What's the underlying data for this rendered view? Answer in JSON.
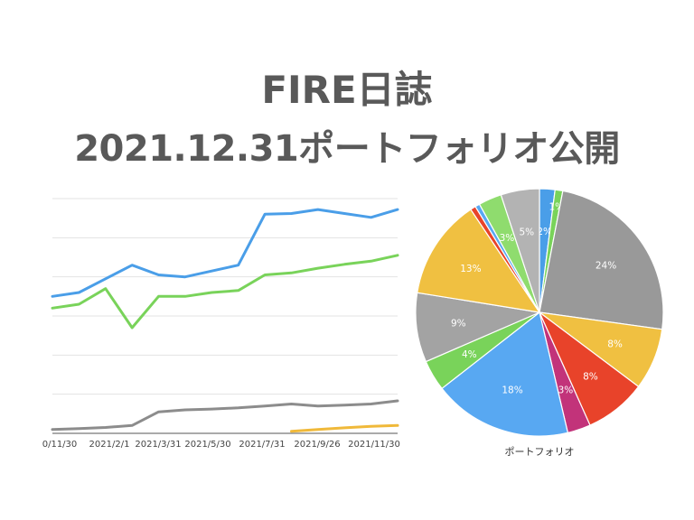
{
  "header": {
    "title_line1": "FIRE日誌",
    "title_line2": "2021.12.31ポートフォリオ公開"
  },
  "chart_data": [
    {
      "type": "line",
      "x_ticks": [
        "0/11/30",
        "2021/2/1",
        "2021/3/31",
        "2021/5/30",
        "2021/7/31",
        "2021/9/26",
        "2021/11/30"
      ],
      "ylim": [
        0,
        6
      ],
      "grid": true,
      "series": [
        {
          "color": "#4a9ee8",
          "values": [
            3.5,
            3.6,
            3.95,
            4.3,
            4.05,
            4.0,
            4.15,
            4.3,
            5.6,
            5.62,
            5.72,
            5.62,
            5.52,
            5.72
          ]
        },
        {
          "color": "#79d35a",
          "values": [
            3.2,
            3.3,
            3.7,
            2.7,
            3.5,
            3.5,
            3.6,
            3.65,
            4.05,
            4.1,
            4.22,
            4.32,
            4.4,
            4.55
          ]
        },
        {
          "color": "#8c8c8c",
          "values": [
            0.1,
            0.12,
            0.15,
            0.2,
            0.55,
            0.6,
            0.62,
            0.65,
            0.7,
            0.75,
            0.7,
            0.72,
            0.75,
            0.83
          ]
        },
        {
          "color": "#f0b93a",
          "values": [
            null,
            null,
            null,
            null,
            null,
            null,
            null,
            null,
            null,
            0.05,
            0.1,
            0.14,
            0.18,
            0.2
          ]
        }
      ]
    },
    {
      "type": "pie",
      "xlabel": "ポートフォリオ",
      "slices": [
        {
          "label": "2%",
          "value": 2,
          "color": "#4a9ee8"
        },
        {
          "label": "1%",
          "value": 1,
          "color": "#79d35a"
        },
        {
          "label": "24%",
          "value": 24,
          "color": "#999999"
        },
        {
          "label": "8%",
          "value": 8,
          "color": "#f0c041"
        },
        {
          "label": "8%",
          "value": 8,
          "color": "#e8432a"
        },
        {
          "label": "3%",
          "value": 3,
          "color": "#c2337a"
        },
        {
          "label": "18%",
          "value": 18,
          "color": "#58a8f2"
        },
        {
          "label": "4%",
          "value": 4,
          "color": "#79d35a"
        },
        {
          "label": "9%",
          "value": 9,
          "color": "#a3a3a3"
        },
        {
          "label": "13%",
          "value": 13,
          "color": "#f0c041"
        },
        {
          "label": "",
          "value": 0.7,
          "color": "#e8432a"
        },
        {
          "label": "",
          "value": 0.6,
          "color": "#58a8f2"
        },
        {
          "label": "3%",
          "value": 3,
          "color": "#8fdc6e"
        },
        {
          "label": "5%",
          "value": 5,
          "color": "#b3b3b3"
        }
      ]
    }
  ]
}
